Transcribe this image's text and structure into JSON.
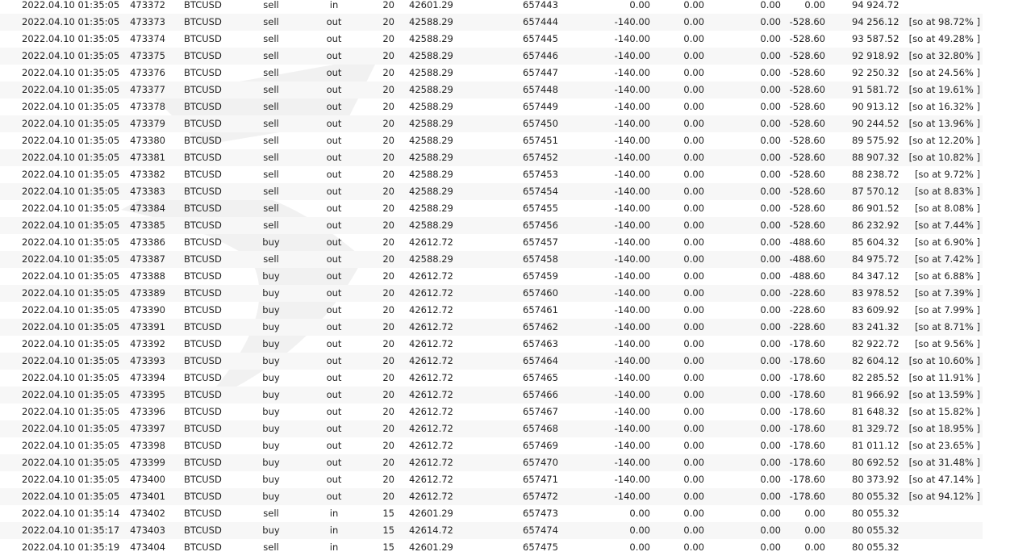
{
  "deals": [
    [
      "2022.04.10 01:35:05",
      "473372",
      "BTCUSD",
      "sell",
      "in",
      "20",
      "42601.29",
      "657443",
      "0.00",
      "0.00",
      "0.00",
      "0.00",
      "94 924.72",
      ""
    ],
    [
      "2022.04.10 01:35:05",
      "473373",
      "BTCUSD",
      "sell",
      "out",
      "20",
      "42588.29",
      "657444",
      "-140.00",
      "0.00",
      "0.00",
      "-528.60",
      "94 256.12",
      "[so at 98.72% ]"
    ],
    [
      "2022.04.10 01:35:05",
      "473374",
      "BTCUSD",
      "sell",
      "out",
      "20",
      "42588.29",
      "657445",
      "-140.00",
      "0.00",
      "0.00",
      "-528.60",
      "93 587.52",
      "[so at 49.28% ]"
    ],
    [
      "2022.04.10 01:35:05",
      "473375",
      "BTCUSD",
      "sell",
      "out",
      "20",
      "42588.29",
      "657446",
      "-140.00",
      "0.00",
      "0.00",
      "-528.60",
      "92 918.92",
      "[so at 32.80% ]"
    ],
    [
      "2022.04.10 01:35:05",
      "473376",
      "BTCUSD",
      "sell",
      "out",
      "20",
      "42588.29",
      "657447",
      "-140.00",
      "0.00",
      "0.00",
      "-528.60",
      "92 250.32",
      "[so at 24.56% ]"
    ],
    [
      "2022.04.10 01:35:05",
      "473377",
      "BTCUSD",
      "sell",
      "out",
      "20",
      "42588.29",
      "657448",
      "-140.00",
      "0.00",
      "0.00",
      "-528.60",
      "91 581.72",
      "[so at 19.61% ]"
    ],
    [
      "2022.04.10 01:35:05",
      "473378",
      "BTCUSD",
      "sell",
      "out",
      "20",
      "42588.29",
      "657449",
      "-140.00",
      "0.00",
      "0.00",
      "-528.60",
      "90 913.12",
      "[so at 16.32% ]"
    ],
    [
      "2022.04.10 01:35:05",
      "473379",
      "BTCUSD",
      "sell",
      "out",
      "20",
      "42588.29",
      "657450",
      "-140.00",
      "0.00",
      "0.00",
      "-528.60",
      "90 244.52",
      "[so at 13.96% ]"
    ],
    [
      "2022.04.10 01:35:05",
      "473380",
      "BTCUSD",
      "sell",
      "out",
      "20",
      "42588.29",
      "657451",
      "-140.00",
      "0.00",
      "0.00",
      "-528.60",
      "89 575.92",
      "[so at 12.20% ]"
    ],
    [
      "2022.04.10 01:35:05",
      "473381",
      "BTCUSD",
      "sell",
      "out",
      "20",
      "42588.29",
      "657452",
      "-140.00",
      "0.00",
      "0.00",
      "-528.60",
      "88 907.32",
      "[so at 10.82% ]"
    ],
    [
      "2022.04.10 01:35:05",
      "473382",
      "BTCUSD",
      "sell",
      "out",
      "20",
      "42588.29",
      "657453",
      "-140.00",
      "0.00",
      "0.00",
      "-528.60",
      "88 238.72",
      "[so at 9.72% ]"
    ],
    [
      "2022.04.10 01:35:05",
      "473383",
      "BTCUSD",
      "sell",
      "out",
      "20",
      "42588.29",
      "657454",
      "-140.00",
      "0.00",
      "0.00",
      "-528.60",
      "87 570.12",
      "[so at 8.83% ]"
    ],
    [
      "2022.04.10 01:35:05",
      "473384",
      "BTCUSD",
      "sell",
      "out",
      "20",
      "42588.29",
      "657455",
      "-140.00",
      "0.00",
      "0.00",
      "-528.60",
      "86 901.52",
      "[so at 8.08% ]"
    ],
    [
      "2022.04.10 01:35:05",
      "473385",
      "BTCUSD",
      "sell",
      "out",
      "20",
      "42588.29",
      "657456",
      "-140.00",
      "0.00",
      "0.00",
      "-528.60",
      "86 232.92",
      "[so at 7.44% ]"
    ],
    [
      "2022.04.10 01:35:05",
      "473386",
      "BTCUSD",
      "buy",
      "out",
      "20",
      "42612.72",
      "657457",
      "-140.00",
      "0.00",
      "0.00",
      "-488.60",
      "85 604.32",
      "[so at 6.90% ]"
    ],
    [
      "2022.04.10 01:35:05",
      "473387",
      "BTCUSD",
      "sell",
      "out",
      "20",
      "42588.29",
      "657458",
      "-140.00",
      "0.00",
      "0.00",
      "-488.60",
      "84 975.72",
      "[so at 7.42% ]"
    ],
    [
      "2022.04.10 01:35:05",
      "473388",
      "BTCUSD",
      "buy",
      "out",
      "20",
      "42612.72",
      "657459",
      "-140.00",
      "0.00",
      "0.00",
      "-488.60",
      "84 347.12",
      "[so at 6.88% ]"
    ],
    [
      "2022.04.10 01:35:05",
      "473389",
      "BTCUSD",
      "buy",
      "out",
      "20",
      "42612.72",
      "657460",
      "-140.00",
      "0.00",
      "0.00",
      "-228.60",
      "83 978.52",
      "[so at 7.39% ]"
    ],
    [
      "2022.04.10 01:35:05",
      "473390",
      "BTCUSD",
      "buy",
      "out",
      "20",
      "42612.72",
      "657461",
      "-140.00",
      "0.00",
      "0.00",
      "-228.60",
      "83 609.92",
      "[so at 7.99% ]"
    ],
    [
      "2022.04.10 01:35:05",
      "473391",
      "BTCUSD",
      "buy",
      "out",
      "20",
      "42612.72",
      "657462",
      "-140.00",
      "0.00",
      "0.00",
      "-228.60",
      "83 241.32",
      "[so at 8.71% ]"
    ],
    [
      "2022.04.10 01:35:05",
      "473392",
      "BTCUSD",
      "buy",
      "out",
      "20",
      "42612.72",
      "657463",
      "-140.00",
      "0.00",
      "0.00",
      "-178.60",
      "82 922.72",
      "[so at 9.56% ]"
    ],
    [
      "2022.04.10 01:35:05",
      "473393",
      "BTCUSD",
      "buy",
      "out",
      "20",
      "42612.72",
      "657464",
      "-140.00",
      "0.00",
      "0.00",
      "-178.60",
      "82 604.12",
      "[so at 10.60% ]"
    ],
    [
      "2022.04.10 01:35:05",
      "473394",
      "BTCUSD",
      "buy",
      "out",
      "20",
      "42612.72",
      "657465",
      "-140.00",
      "0.00",
      "0.00",
      "-178.60",
      "82 285.52",
      "[so at 11.91% ]"
    ],
    [
      "2022.04.10 01:35:05",
      "473395",
      "BTCUSD",
      "buy",
      "out",
      "20",
      "42612.72",
      "657466",
      "-140.00",
      "0.00",
      "0.00",
      "-178.60",
      "81 966.92",
      "[so at 13.59% ]"
    ],
    [
      "2022.04.10 01:35:05",
      "473396",
      "BTCUSD",
      "buy",
      "out",
      "20",
      "42612.72",
      "657467",
      "-140.00",
      "0.00",
      "0.00",
      "-178.60",
      "81 648.32",
      "[so at 15.82% ]"
    ],
    [
      "2022.04.10 01:35:05",
      "473397",
      "BTCUSD",
      "buy",
      "out",
      "20",
      "42612.72",
      "657468",
      "-140.00",
      "0.00",
      "0.00",
      "-178.60",
      "81 329.72",
      "[so at 18.95% ]"
    ],
    [
      "2022.04.10 01:35:05",
      "473398",
      "BTCUSD",
      "buy",
      "out",
      "20",
      "42612.72",
      "657469",
      "-140.00",
      "0.00",
      "0.00",
      "-178.60",
      "81 011.12",
      "[so at 23.65% ]"
    ],
    [
      "2022.04.10 01:35:05",
      "473399",
      "BTCUSD",
      "buy",
      "out",
      "20",
      "42612.72",
      "657470",
      "-140.00",
      "0.00",
      "0.00",
      "-178.60",
      "80 692.52",
      "[so at 31.48% ]"
    ],
    [
      "2022.04.10 01:35:05",
      "473400",
      "BTCUSD",
      "buy",
      "out",
      "20",
      "42612.72",
      "657471",
      "-140.00",
      "0.00",
      "0.00",
      "-178.60",
      "80 373.92",
      "[so at 47.14% ]"
    ],
    [
      "2022.04.10 01:35:05",
      "473401",
      "BTCUSD",
      "buy",
      "out",
      "20",
      "42612.72",
      "657472",
      "-140.00",
      "0.00",
      "0.00",
      "-178.60",
      "80 055.32",
      "[so at 94.12% ]"
    ],
    [
      "2022.04.10 01:35:14",
      "473402",
      "BTCUSD",
      "sell",
      "in",
      "15",
      "42601.29",
      "657473",
      "0.00",
      "0.00",
      "0.00",
      "0.00",
      "80 055.32",
      ""
    ],
    [
      "2022.04.10 01:35:17",
      "473403",
      "BTCUSD",
      "buy",
      "in",
      "15",
      "42614.72",
      "657474",
      "0.00",
      "0.00",
      "0.00",
      "0.00",
      "80 055.32",
      ""
    ],
    [
      "2022.04.10 01:35:19",
      "473404",
      "BTCUSD",
      "sell",
      "in",
      "15",
      "42601.29",
      "657475",
      "0.00",
      "0.00",
      "0.00",
      "0.00",
      "80 055.32",
      ""
    ]
  ]
}
